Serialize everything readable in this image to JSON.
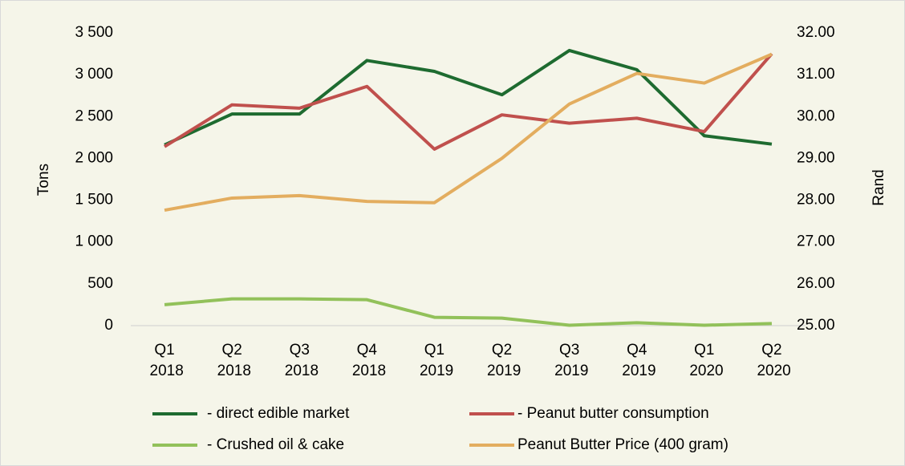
{
  "chart_data": {
    "type": "line",
    "categories": [
      "Q1 2018",
      "Q2 2018",
      "Q3 2018",
      "Q4 2018",
      "Q1 2019",
      "Q2 2019",
      "Q3 2019",
      "Q4 2019",
      "Q1 2020",
      "Q2 2020"
    ],
    "ylabel": "Tons",
    "y2label": "Rand",
    "ylim": [
      0,
      3500
    ],
    "yticks": [
      0,
      500,
      {
        "value": 1000,
        "label": "1 000"
      },
      {
        "value": 1500,
        "label": "1 500"
      },
      {
        "value": 2000,
        "label": "2 000"
      },
      {
        "value": 2500,
        "label": "2 500"
      },
      {
        "value": 3000,
        "label": "3 000"
      },
      {
        "value": 3500,
        "label": "3 500"
      }
    ],
    "y2lim": [
      25,
      32
    ],
    "y2ticks": [
      {
        "value": 25,
        "label": "25.00"
      },
      {
        "value": 26,
        "label": "26.00"
      },
      {
        "value": 27,
        "label": "27.00"
      },
      {
        "value": 28,
        "label": "28.00"
      },
      {
        "value": 29,
        "label": "29.00"
      },
      {
        "value": 30,
        "label": "30.00"
      },
      {
        "value": 31,
        "label": "31.00"
      },
      {
        "value": 32,
        "label": "32.00"
      }
    ],
    "grid": false,
    "legend": "bottom",
    "series": [
      {
        "name": "- direct edible market",
        "color": "#1e6b30",
        "values": [
          2160,
          2530,
          2530,
          3170,
          3040,
          2760,
          3290,
          3060,
          2270,
          2170
        ]
      },
      {
        "name": "- Peanut butter consumption",
        "color": "#c0504d",
        "values": [
          2140,
          2640,
          2600,
          2860,
          2110,
          2520,
          2420,
          2480,
          2320,
          3250
        ]
      },
      {
        "name": "- Crushed oil & cake",
        "color": "#92c15a",
        "values": [
          250,
          320,
          320,
          310,
          100,
          90,
          5,
          35,
          5,
          25
        ]
      },
      {
        "name": "Peanut Butter Price (400 gram)",
        "color": "#e3ad5f",
        "axis": "y2",
        "values": [
          27.76,
          28.05,
          28.11,
          27.97,
          27.94,
          29.0,
          30.3,
          31.03,
          30.8,
          31.49
        ]
      }
    ]
  }
}
